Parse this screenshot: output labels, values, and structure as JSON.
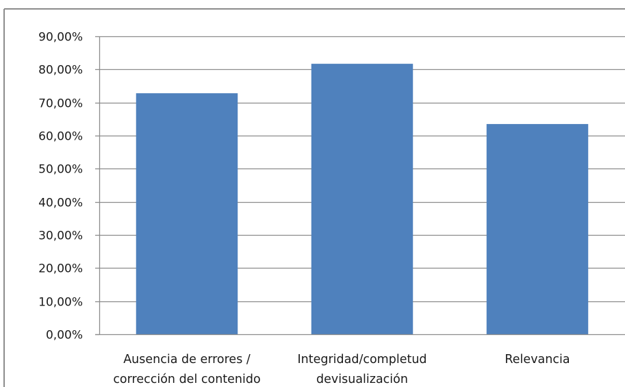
{
  "chart_data": {
    "type": "bar",
    "title": "",
    "xlabel": "",
    "ylabel": "",
    "categories": [
      [
        "Ausencia de errores /",
        "corrección del contenido"
      ],
      [
        "Integridad/completud",
        "devisualización"
      ],
      [
        "Relevancia"
      ]
    ],
    "values": [
      72.8,
      81.7,
      63.5
    ],
    "ylim": [
      0,
      90
    ],
    "yticks": [
      0,
      10,
      20,
      30,
      40,
      50,
      60,
      70,
      80,
      90
    ],
    "ytick_labels": [
      "0,00%",
      "10,00%",
      "20,00%",
      "30,00%",
      "40,00%",
      "50,00%",
      "60,00%",
      "70,00%",
      "80,00%",
      "90,00%"
    ],
    "grid": true,
    "legend": "none",
    "colors": {
      "bar": "#4f81bd",
      "grid": "#8c8c8c",
      "frame": "#8c8c8c",
      "axis": "#8c8c8c",
      "text": "#1a1a1a"
    }
  }
}
